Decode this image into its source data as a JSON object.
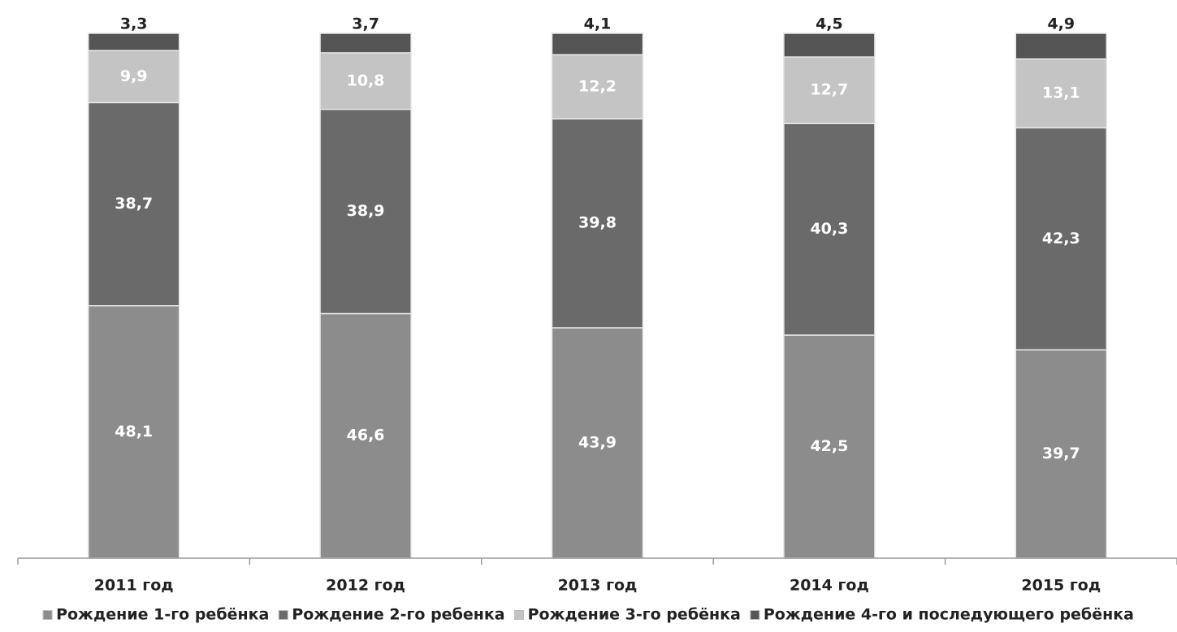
{
  "chart_data": {
    "type": "bar",
    "stacked": true,
    "title": "",
    "xlabel": "",
    "ylabel": "",
    "ylim": [
      0,
      100
    ],
    "grid": false,
    "legend_position": "bottom",
    "categories": [
      "2011 год",
      "2012 год",
      "2013 год",
      "2014 год",
      "2015 год"
    ],
    "series": [
      {
        "name": "Рождение 1-го ребёнка",
        "values": [
          48.1,
          46.6,
          43.9,
          42.5,
          39.7
        ],
        "labels": [
          "48,1",
          "46,6",
          "43,9",
          "42,5",
          "39,7"
        ],
        "color": "#8c8c8c"
      },
      {
        "name": "Рождение 2-го ребенка",
        "values": [
          38.7,
          38.9,
          39.8,
          40.3,
          42.3
        ],
        "labels": [
          "38,7",
          "38,9",
          "39,8",
          "40,3",
          "42,3"
        ],
        "color": "#6a6a6a"
      },
      {
        "name": "Рождение 3-го ребёнка",
        "values": [
          9.9,
          10.8,
          12.2,
          12.7,
          13.1
        ],
        "labels": [
          "9,9",
          "10,8",
          "12,2",
          "12,7",
          "13,1"
        ],
        "color": "#c4c4c4"
      },
      {
        "name": "Рождение 4-го и последующего ребёнка",
        "values": [
          3.3,
          3.7,
          4.1,
          4.5,
          4.9
        ],
        "labels": [
          "3,3",
          "3,7",
          "4,1",
          "4,5",
          "4,9"
        ],
        "color": "#555555"
      }
    ]
  }
}
